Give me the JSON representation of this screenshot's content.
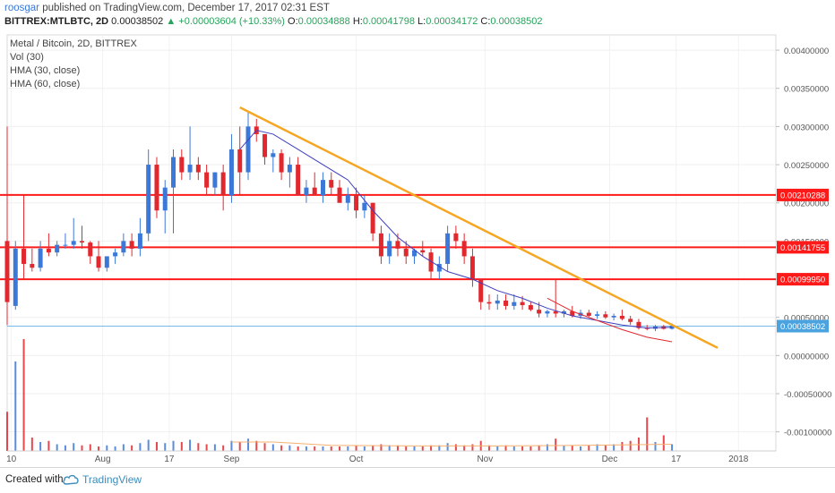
{
  "header": {
    "username": "roosgar",
    "published_text": "published on TradingView.com, December 17, 2017 02:31 EST",
    "symbol": "BITTREX:MTLBTC, 2D",
    "price": "0.00038502",
    "change": "▲ +0.00003604 (+10.33%)",
    "open_label": "O:",
    "open": "0.00034888",
    "high_label": "H:",
    "high": "0.00041798",
    "low_label": "L:",
    "low": "0.00034172",
    "close_label": "C:",
    "close": "0.00038502"
  },
  "legend": {
    "title": "Metal / Bitcoin, 2D, BITTREX",
    "items": [
      "Vol (30)",
      "HMA (30, close)",
      "HMA (60, close)"
    ]
  },
  "footer": {
    "created_with": "Created with",
    "brand": "TradingView"
  },
  "colors": {
    "up": "#3c78d8",
    "down": "#e0282e",
    "hma30": "#3f3fbf",
    "hma60": "#e0282e",
    "trendline": "#f5a623",
    "level": "#ff1a1a",
    "price_line": "#4aa3df"
  },
  "chart_data": {
    "type": "candlestick",
    "y_axis": {
      "ticks": [
        "0.00400000",
        "0.00350000",
        "0.00300000",
        "0.00250000",
        "0.00200000",
        "0.00150000",
        "0.00100000",
        "0.00050000",
        "0.00000000",
        "-0.00050000",
        "-0.00100000"
      ],
      "range": [
        -0.00125,
        0.0042
      ]
    },
    "x_axis": {
      "range": [
        "2017-07-09",
        "2018-01-10"
      ],
      "ticks": [
        {
          "label": "10",
          "date": "2017-07-10"
        },
        {
          "label": "Aug",
          "date": "2017-08-01"
        },
        {
          "label": "17",
          "date": "2017-08-17"
        },
        {
          "label": "Sep",
          "date": "2017-09-01"
        },
        {
          "label": "Oct",
          "date": "2017-10-01"
        },
        {
          "label": "Nov",
          "date": "2017-11-01"
        },
        {
          "label": "Dec",
          "date": "2017-12-01"
        },
        {
          "label": "17",
          "date": "2017-12-17"
        },
        {
          "label": "2018",
          "date": "2018-01-01"
        }
      ]
    },
    "levels": [
      {
        "value": 0.00210288,
        "label": "0.00210288"
      },
      {
        "value": 0.00141755,
        "label": "0.00141755"
      },
      {
        "value": 0.0009995,
        "label": "0.00099950"
      }
    ],
    "last_price": {
      "value": 0.00038502,
      "label": "0.00038502"
    },
    "trendline": {
      "start": [
        "2017-09-03",
        0.00325
      ],
      "end": [
        "2017-12-27",
        0.0001
      ]
    },
    "candles": [
      {
        "date": "2017-07-09",
        "o": 0.0015,
        "h": 0.003,
        "l": 0.0004,
        "c": 0.0007
      },
      {
        "date": "2017-07-11",
        "o": 0.00065,
        "h": 0.0015,
        "l": 0.0006,
        "c": 0.0014
      },
      {
        "date": "2017-07-13",
        "o": 0.0014,
        "h": 0.0021,
        "l": 0.001,
        "c": 0.0012
      },
      {
        "date": "2017-07-15",
        "o": 0.0012,
        "h": 0.0014,
        "l": 0.0011,
        "c": 0.00115
      },
      {
        "date": "2017-07-17",
        "o": 0.00115,
        "h": 0.0015,
        "l": 0.0011,
        "c": 0.0014
      },
      {
        "date": "2017-07-19",
        "o": 0.0014,
        "h": 0.0016,
        "l": 0.0013,
        "c": 0.00135
      },
      {
        "date": "2017-07-21",
        "o": 0.00135,
        "h": 0.0015,
        "l": 0.0013,
        "c": 0.00145
      },
      {
        "date": "2017-07-23",
        "o": 0.00145,
        "h": 0.0016,
        "l": 0.0014,
        "c": 0.00145
      },
      {
        "date": "2017-07-25",
        "o": 0.00145,
        "h": 0.0018,
        "l": 0.0014,
        "c": 0.0015
      },
      {
        "date": "2017-07-27",
        "o": 0.0015,
        "h": 0.0017,
        "l": 0.0014,
        "c": 0.00148
      },
      {
        "date": "2017-07-29",
        "o": 0.00148,
        "h": 0.0015,
        "l": 0.0012,
        "c": 0.0013
      },
      {
        "date": "2017-07-31",
        "o": 0.0013,
        "h": 0.0015,
        "l": 0.0011,
        "c": 0.00115
      },
      {
        "date": "2017-08-02",
        "o": 0.00115,
        "h": 0.0013,
        "l": 0.0011,
        "c": 0.0013
      },
      {
        "date": "2017-08-04",
        "o": 0.0013,
        "h": 0.0014,
        "l": 0.0012,
        "c": 0.00135
      },
      {
        "date": "2017-08-06",
        "o": 0.00135,
        "h": 0.0016,
        "l": 0.0013,
        "c": 0.0015
      },
      {
        "date": "2017-08-08",
        "o": 0.0015,
        "h": 0.0016,
        "l": 0.0013,
        "c": 0.0014
      },
      {
        "date": "2017-08-10",
        "o": 0.0014,
        "h": 0.0018,
        "l": 0.0013,
        "c": 0.0016
      },
      {
        "date": "2017-08-12",
        "o": 0.0016,
        "h": 0.0027,
        "l": 0.0015,
        "c": 0.0025
      },
      {
        "date": "2017-08-14",
        "o": 0.0025,
        "h": 0.0026,
        "l": 0.0018,
        "c": 0.0019
      },
      {
        "date": "2017-08-16",
        "o": 0.0019,
        "h": 0.0023,
        "l": 0.0016,
        "c": 0.0022
      },
      {
        "date": "2017-08-18",
        "o": 0.0022,
        "h": 0.0027,
        "l": 0.0016,
        "c": 0.0026
      },
      {
        "date": "2017-08-20",
        "o": 0.0026,
        "h": 0.0027,
        "l": 0.0023,
        "c": 0.0024
      },
      {
        "date": "2017-08-22",
        "o": 0.0024,
        "h": 0.003,
        "l": 0.0023,
        "c": 0.0025
      },
      {
        "date": "2017-08-24",
        "o": 0.0025,
        "h": 0.0026,
        "l": 0.0023,
        "c": 0.0024
      },
      {
        "date": "2017-08-26",
        "o": 0.0024,
        "h": 0.0025,
        "l": 0.0021,
        "c": 0.0022
      },
      {
        "date": "2017-08-28",
        "o": 0.0022,
        "h": 0.0024,
        "l": 0.0021,
        "c": 0.0024
      },
      {
        "date": "2017-08-30",
        "o": 0.0024,
        "h": 0.0025,
        "l": 0.0019,
        "c": 0.0021
      },
      {
        "date": "2017-09-01",
        "o": 0.0021,
        "h": 0.0029,
        "l": 0.002,
        "c": 0.0027
      },
      {
        "date": "2017-09-03",
        "o": 0.0027,
        "h": 0.003,
        "l": 0.0021,
        "c": 0.0024
      },
      {
        "date": "2017-09-05",
        "o": 0.0024,
        "h": 0.0032,
        "l": 0.0023,
        "c": 0.003
      },
      {
        "date": "2017-09-07",
        "o": 0.003,
        "h": 0.0031,
        "l": 0.0028,
        "c": 0.0029
      },
      {
        "date": "2017-09-09",
        "o": 0.0029,
        "h": 0.0029,
        "l": 0.0025,
        "c": 0.0026
      },
      {
        "date": "2017-09-11",
        "o": 0.0026,
        "h": 0.0027,
        "l": 0.0024,
        "c": 0.00265
      },
      {
        "date": "2017-09-13",
        "o": 0.00265,
        "h": 0.0027,
        "l": 0.0023,
        "c": 0.0024
      },
      {
        "date": "2017-09-15",
        "o": 0.0024,
        "h": 0.0026,
        "l": 0.0022,
        "c": 0.0025
      },
      {
        "date": "2017-09-17",
        "o": 0.0025,
        "h": 0.0026,
        "l": 0.0021,
        "c": 0.0021
      },
      {
        "date": "2017-09-19",
        "o": 0.0021,
        "h": 0.0023,
        "l": 0.002,
        "c": 0.0022
      },
      {
        "date": "2017-09-21",
        "o": 0.0022,
        "h": 0.0024,
        "l": 0.0021,
        "c": 0.0021
      },
      {
        "date": "2017-09-23",
        "o": 0.0021,
        "h": 0.0024,
        "l": 0.002,
        "c": 0.0023
      },
      {
        "date": "2017-09-25",
        "o": 0.0023,
        "h": 0.0024,
        "l": 0.0021,
        "c": 0.0022
      },
      {
        "date": "2017-09-27",
        "o": 0.0022,
        "h": 0.0023,
        "l": 0.002,
        "c": 0.002
      },
      {
        "date": "2017-09-29",
        "o": 0.002,
        "h": 0.0022,
        "l": 0.0019,
        "c": 0.0021
      },
      {
        "date": "2017-10-01",
        "o": 0.0021,
        "h": 0.0022,
        "l": 0.0018,
        "c": 0.0019
      },
      {
        "date": "2017-10-03",
        "o": 0.0019,
        "h": 0.0021,
        "l": 0.0018,
        "c": 0.002
      },
      {
        "date": "2017-10-05",
        "o": 0.002,
        "h": 0.002,
        "l": 0.0015,
        "c": 0.0016
      },
      {
        "date": "2017-10-07",
        "o": 0.0016,
        "h": 0.0017,
        "l": 0.0012,
        "c": 0.0013
      },
      {
        "date": "2017-10-09",
        "o": 0.0013,
        "h": 0.0016,
        "l": 0.0012,
        "c": 0.0015
      },
      {
        "date": "2017-10-11",
        "o": 0.0015,
        "h": 0.0016,
        "l": 0.0013,
        "c": 0.0014
      },
      {
        "date": "2017-10-13",
        "o": 0.0014,
        "h": 0.0015,
        "l": 0.0012,
        "c": 0.0013
      },
      {
        "date": "2017-10-15",
        "o": 0.0013,
        "h": 0.0014,
        "l": 0.0012,
        "c": 0.00138
      },
      {
        "date": "2017-10-17",
        "o": 0.00138,
        "h": 0.0015,
        "l": 0.0013,
        "c": 0.00135
      },
      {
        "date": "2017-10-19",
        "o": 0.00135,
        "h": 0.0014,
        "l": 0.001,
        "c": 0.0011
      },
      {
        "date": "2017-10-21",
        "o": 0.0011,
        "h": 0.0013,
        "l": 0.001,
        "c": 0.0012
      },
      {
        "date": "2017-10-23",
        "o": 0.0012,
        "h": 0.0017,
        "l": 0.0011,
        "c": 0.0016
      },
      {
        "date": "2017-10-25",
        "o": 0.0016,
        "h": 0.0017,
        "l": 0.0014,
        "c": 0.0015
      },
      {
        "date": "2017-10-27",
        "o": 0.0015,
        "h": 0.0016,
        "l": 0.0012,
        "c": 0.0013
      },
      {
        "date": "2017-10-29",
        "o": 0.0013,
        "h": 0.0014,
        "l": 0.0009,
        "c": 0.001
      },
      {
        "date": "2017-10-31",
        "o": 0.001,
        "h": 0.001,
        "l": 0.0006,
        "c": 0.0007
      },
      {
        "date": "2017-11-02",
        "o": 0.0007,
        "h": 0.0008,
        "l": 0.0006,
        "c": 0.00068
      },
      {
        "date": "2017-11-04",
        "o": 0.00068,
        "h": 0.0008,
        "l": 0.0006,
        "c": 0.00072
      },
      {
        "date": "2017-11-06",
        "o": 0.00072,
        "h": 0.0008,
        "l": 0.0006,
        "c": 0.00065
      },
      {
        "date": "2017-11-08",
        "o": 0.00065,
        "h": 0.0008,
        "l": 0.0006,
        "c": 0.0007
      },
      {
        "date": "2017-11-10",
        "o": 0.0007,
        "h": 0.00078,
        "l": 0.0006,
        "c": 0.00066
      },
      {
        "date": "2017-11-12",
        "o": 0.00066,
        "h": 0.0007,
        "l": 0.00058,
        "c": 0.0006
      },
      {
        "date": "2017-11-14",
        "o": 0.0006,
        "h": 0.0007,
        "l": 0.0005,
        "c": 0.00055
      },
      {
        "date": "2017-11-16",
        "o": 0.00055,
        "h": 0.0006,
        "l": 0.0005,
        "c": 0.00058
      },
      {
        "date": "2017-11-18",
        "o": 0.00058,
        "h": 0.001,
        "l": 0.0005,
        "c": 0.00055
      },
      {
        "date": "2017-11-20",
        "o": 0.00055,
        "h": 0.0006,
        "l": 0.0005,
        "c": 0.00058
      },
      {
        "date": "2017-11-22",
        "o": 0.00058,
        "h": 0.00065,
        "l": 0.0005,
        "c": 0.00052
      },
      {
        "date": "2017-11-24",
        "o": 0.00052,
        "h": 0.0006,
        "l": 0.00048,
        "c": 0.00056
      },
      {
        "date": "2017-11-26",
        "o": 0.00056,
        "h": 0.0006,
        "l": 0.0005,
        "c": 0.00052
      },
      {
        "date": "2017-11-28",
        "o": 0.00052,
        "h": 0.00058,
        "l": 0.00048,
        "c": 0.00054
      },
      {
        "date": "2017-11-30",
        "o": 0.00054,
        "h": 0.00058,
        "l": 0.00048,
        "c": 0.0005
      },
      {
        "date": "2017-12-02",
        "o": 0.0005,
        "h": 0.00055,
        "l": 0.00046,
        "c": 0.00052
      },
      {
        "date": "2017-12-04",
        "o": 0.00052,
        "h": 0.0006,
        "l": 0.00046,
        "c": 0.00048
      },
      {
        "date": "2017-12-06",
        "o": 0.00048,
        "h": 0.00052,
        "l": 0.0004,
        "c": 0.00044
      },
      {
        "date": "2017-12-08",
        "o": 0.00044,
        "h": 0.00048,
        "l": 0.00034,
        "c": 0.00036
      },
      {
        "date": "2017-12-10",
        "o": 0.00036,
        "h": 0.0004,
        "l": 0.00033,
        "c": 0.00035
      },
      {
        "date": "2017-12-12",
        "o": 0.00035,
        "h": 0.0004,
        "l": 0.00032,
        "c": 0.00038
      },
      {
        "date": "2017-12-14",
        "o": 0.00038,
        "h": 0.0004,
        "l": 0.00034,
        "c": 0.00035
      },
      {
        "date": "2017-12-16",
        "o": 0.00035,
        "h": 0.00042,
        "l": 0.00034,
        "c": 0.00039
      }
    ],
    "hma30": [
      [
        "2017-09-03",
        0.0027
      ],
      [
        "2017-09-07",
        0.00295
      ],
      [
        "2017-09-11",
        0.0029
      ],
      [
        "2017-09-17",
        0.0027
      ],
      [
        "2017-09-23",
        0.0025
      ],
      [
        "2017-09-29",
        0.0023
      ],
      [
        "2017-10-05",
        0.0019
      ],
      [
        "2017-10-11",
        0.00155
      ],
      [
        "2017-10-17",
        0.0013
      ],
      [
        "2017-10-23",
        0.0011
      ],
      [
        "2017-10-29",
        0.001
      ],
      [
        "2017-11-04",
        0.00085
      ],
      [
        "2017-11-10",
        0.00075
      ],
      [
        "2017-11-16",
        0.00062
      ],
      [
        "2017-11-22",
        0.00052
      ],
      [
        "2017-11-28",
        0.00046
      ],
      [
        "2017-12-04",
        0.0004
      ],
      [
        "2017-12-10",
        0.00036
      ],
      [
        "2017-12-16",
        0.00037
      ]
    ],
    "hma60": [
      [
        "2017-11-16",
        0.00075
      ],
      [
        "2017-11-22",
        0.00058
      ],
      [
        "2017-11-28",
        0.00046
      ],
      [
        "2017-12-04",
        0.00034
      ],
      [
        "2017-12-10",
        0.00024
      ],
      [
        "2017-12-16",
        0.00018
      ]
    ],
    "volume": {
      "max": 100,
      "values": [
        35,
        80,
        100,
        12,
        8,
        9,
        6,
        5,
        7,
        5,
        6,
        4,
        5,
        4,
        6,
        5,
        7,
        10,
        8,
        7,
        9,
        8,
        10,
        7,
        6,
        6,
        5,
        9,
        8,
        11,
        9,
        7,
        6,
        5,
        5,
        4,
        4,
        4,
        4,
        4,
        4,
        4,
        5,
        4,
        5,
        6,
        5,
        5,
        4,
        4,
        4,
        5,
        5,
        7,
        6,
        5,
        6,
        9,
        5,
        4,
        5,
        4,
        4,
        4,
        5,
        6,
        11,
        5,
        5,
        4,
        5,
        6,
        5,
        6,
        8,
        9,
        12,
        30,
        8,
        14,
        6
      ]
    },
    "volume_ma": [
      [
        "2017-09-01",
        8
      ],
      [
        "2017-09-11",
        8
      ],
      [
        "2017-09-25",
        5
      ],
      [
        "2017-10-15",
        4.5
      ],
      [
        "2017-11-04",
        4.5
      ],
      [
        "2017-11-24",
        5
      ],
      [
        "2017-12-16",
        6
      ]
    ]
  }
}
